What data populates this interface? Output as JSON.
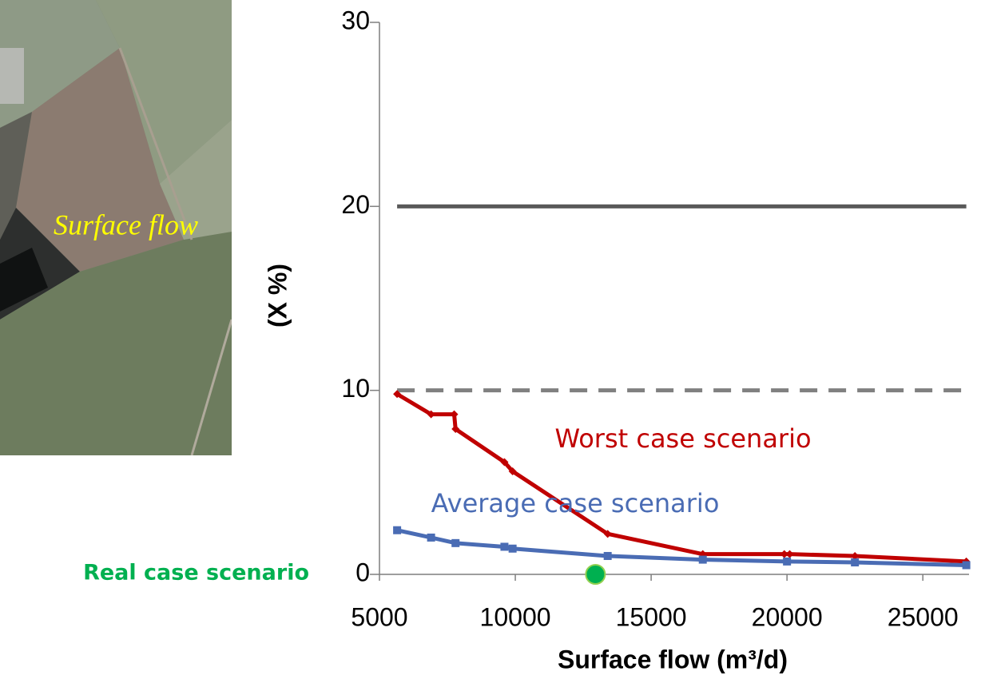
{
  "chart_data": {
    "type": "line",
    "photo_label": "Surface flow",
    "xlabel": "Surface flow (m³/d)",
    "ylabel": "(X %)",
    "xlim": [
      5000,
      26700
    ],
    "xticks": [
      5000,
      10000,
      15000,
      20000,
      25000
    ],
    "ylim": [
      0,
      30
    ],
    "yticks": [
      0,
      10,
      20,
      30
    ],
    "series": [
      {
        "name": "Worst case scenario",
        "color": "#c00000",
        "marker": "diamond",
        "x": [
          5650,
          6900,
          7750,
          7800,
          9600,
          9900,
          13400,
          16900,
          19900,
          20100,
          22500,
          26600
        ],
        "values": [
          9.8,
          8.7,
          8.7,
          7.9,
          6.1,
          5.6,
          2.2,
          1.1,
          1.1,
          1.1,
          1.0,
          0.7
        ]
      },
      {
        "name": "Average case scenario",
        "color": "#4a6cb4",
        "marker": "square",
        "x": [
          5650,
          6900,
          7800,
          9600,
          9900,
          13400,
          16900,
          20000,
          22500,
          26600
        ],
        "values": [
          2.4,
          2.0,
          1.7,
          1.5,
          1.4,
          1.0,
          0.8,
          0.7,
          0.65,
          0.5
        ]
      },
      {
        "name": "Real case scenario",
        "color": "#00b050",
        "marker": "circle",
        "x": [
          12950
        ],
        "values": [
          0
        ]
      }
    ],
    "reference_lines": [
      {
        "value": 20,
        "x": [
          5650,
          26600
        ],
        "style": "solid",
        "color": "#595959"
      },
      {
        "value": 10,
        "x": [
          5650,
          26600
        ],
        "style": "dashed",
        "color": "#808080"
      }
    ]
  }
}
